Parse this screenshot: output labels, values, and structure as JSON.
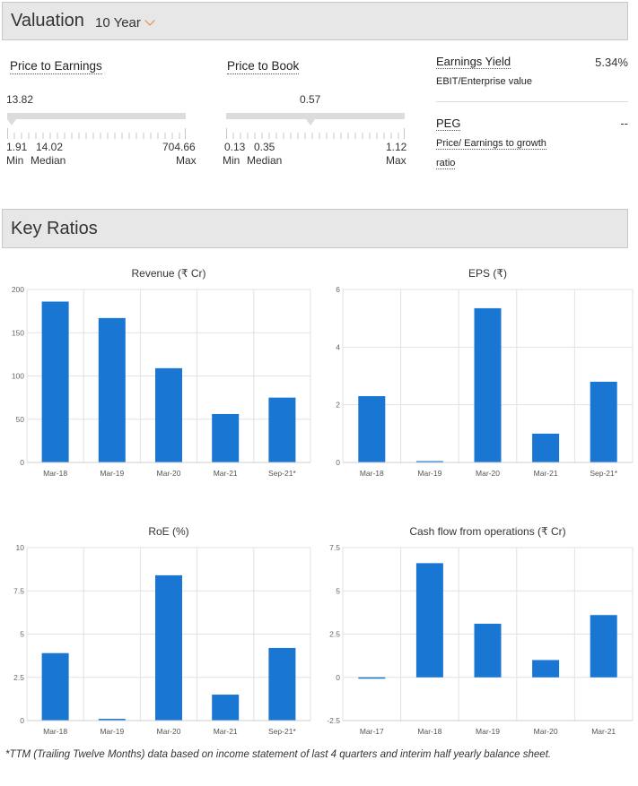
{
  "valuation": {
    "title": "Valuation",
    "range": "10 Year",
    "pe": {
      "title": "Price to Earnings",
      "current": "13.82",
      "min": "1.91",
      "median": "14.02",
      "max": "704.66",
      "min_label": "Min",
      "median_label": "Median",
      "max_label": "Max"
    },
    "pb": {
      "title": "Price to Book",
      "current": "0.57",
      "min": "0.13",
      "median": "0.35",
      "max": "1.12",
      "min_label": "Min",
      "median_label": "Median",
      "max_label": "Max"
    },
    "earnings_yield": {
      "name": "Earnings Yield",
      "sub": "EBIT/Enterprise value",
      "value": "5.34%"
    },
    "peg": {
      "name": "PEG",
      "sub_line1": "Price/ Earnings to growth",
      "sub_line2": "ratio",
      "value": "--"
    }
  },
  "key_ratios": {
    "title": "Key Ratios",
    "footnote": "*TTM (Trailing Twelve Months) data based on income statement of last 4 quarters and interim half yearly balance sheet."
  },
  "colors": {
    "bar": "#1976d2",
    "accent": "#f27d26"
  },
  "chart_data": [
    {
      "type": "bar",
      "title": "Revenue (₹ Cr)",
      "categories": [
        "Mar-18",
        "Mar-19",
        "Mar-20",
        "Mar-21",
        "Sep-21*"
      ],
      "values": [
        186,
        167,
        109,
        56,
        75
      ],
      "ylim": [
        0,
        200
      ],
      "yticks": [
        0,
        50,
        100,
        150,
        200
      ],
      "ytick_labels": [
        "0",
        "50",
        "100",
        "150",
        "200"
      ],
      "grid": true
    },
    {
      "type": "bar",
      "title": "EPS (₹)",
      "categories": [
        "Mar-18",
        "Mar-19",
        "Mar-20",
        "Mar-21",
        "Sep-21*"
      ],
      "values": [
        2.3,
        0.04,
        5.35,
        1.0,
        2.8
      ],
      "ylim": [
        0,
        6
      ],
      "yticks": [
        0,
        2,
        4,
        6
      ],
      "ytick_labels": [
        "0",
        "2",
        "4",
        "6"
      ],
      "grid": true
    },
    {
      "type": "bar",
      "title": "RoE (%)",
      "categories": [
        "Mar-18",
        "Mar-19",
        "Mar-20",
        "Mar-21",
        "Sep-21*"
      ],
      "values": [
        3.9,
        0.1,
        8.4,
        1.5,
        4.2
      ],
      "ylim": [
        0,
        10
      ],
      "yticks": [
        0,
        2.5,
        5,
        7.5,
        10
      ],
      "ytick_labels": [
        "0",
        "2.5",
        "5",
        "7.5",
        "10"
      ],
      "grid": true
    },
    {
      "type": "bar",
      "title": "Cash flow from operations (₹ Cr)",
      "categories": [
        "Mar-17",
        "Mar-18",
        "Mar-19",
        "Mar-20",
        "Mar-21"
      ],
      "values": [
        -0.05,
        6.6,
        3.1,
        1.0,
        3.6
      ],
      "ylim": [
        -2.5,
        7.5
      ],
      "yticks": [
        -2.5,
        0,
        2.5,
        5,
        7.5
      ],
      "ytick_labels": [
        "-2.5",
        "0",
        "2.5",
        "5",
        "7.5"
      ],
      "grid": true
    }
  ]
}
